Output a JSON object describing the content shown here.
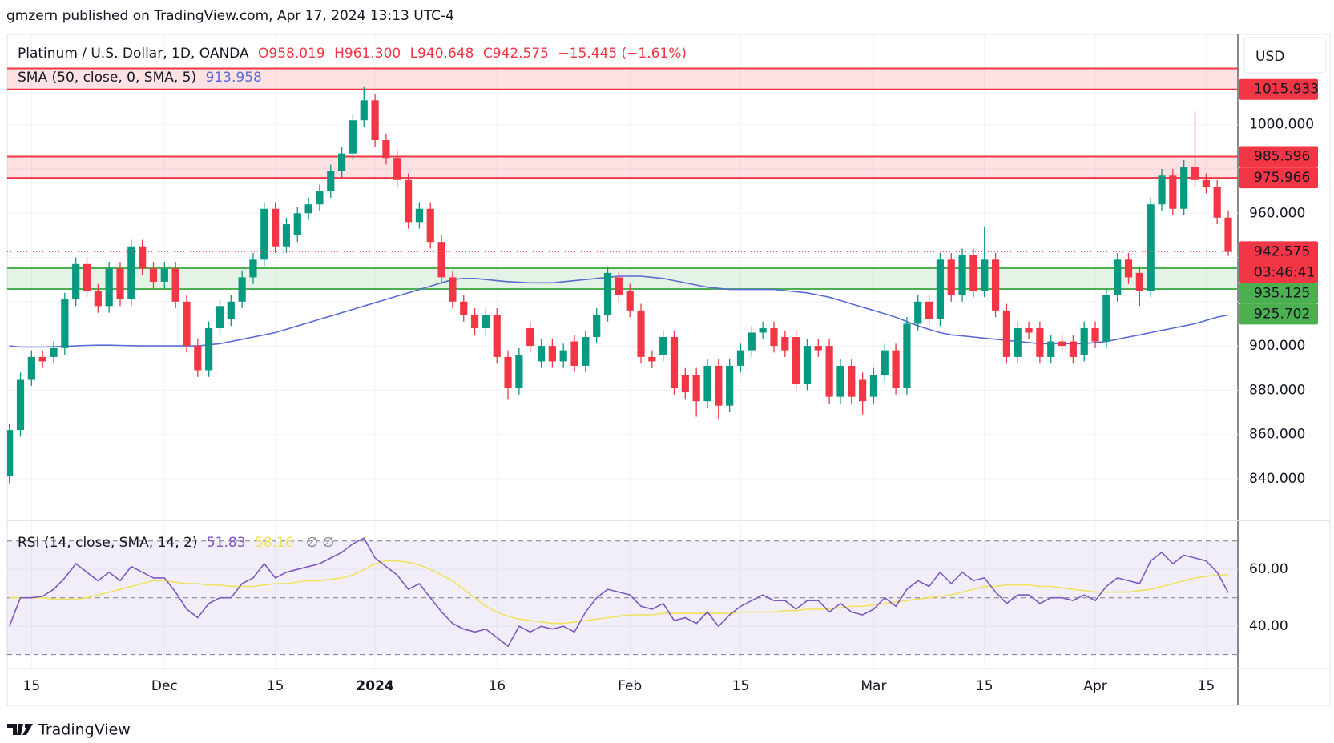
{
  "header": {
    "published": "gmzern published on TradingView.com, Apr 17, 2024 13:13 UTC-4",
    "currency": "USD",
    "footer": "TradingView"
  },
  "chart_data": [
    {
      "type": "candlestick",
      "title": "Platinum / U.S. Dollar, 1D, OANDA",
      "ohlc_legend": [
        {
          "label": "O",
          "text": "958.019"
        },
        {
          "label": "H",
          "text": "961.300"
        },
        {
          "label": "L",
          "text": "940.648"
        },
        {
          "label": "C",
          "text": "942.575"
        }
      ],
      "change": "−15.445 (−1.61%)",
      "countdown": "03:46:41",
      "colors": {
        "up": "#089981",
        "down": "#f23645"
      },
      "categories": [
        null,
        null,
        "15",
        null,
        null,
        null,
        null,
        null,
        null,
        null,
        null,
        null,
        null,
        null,
        "Dec",
        null,
        null,
        null,
        null,
        null,
        null,
        null,
        null,
        null,
        "15",
        null,
        null,
        null,
        null,
        null,
        null,
        null,
        null,
        "2024",
        null,
        null,
        null,
        null,
        null,
        null,
        null,
        null,
        null,
        null,
        "16",
        null,
        null,
        null,
        null,
        null,
        null,
        null,
        null,
        null,
        null,
        null,
        "Feb",
        null,
        null,
        null,
        null,
        null,
        null,
        null,
        null,
        null,
        "15",
        null,
        null,
        null,
        null,
        null,
        null,
        null,
        null,
        null,
        null,
        null,
        "Mar",
        null,
        null,
        null,
        null,
        null,
        null,
        null,
        null,
        null,
        "15",
        null,
        null,
        null,
        null,
        null,
        null,
        null,
        null,
        null,
        "Apr",
        null,
        null,
        null,
        null,
        null,
        null,
        null,
        null,
        null,
        "15",
        null,
        null
      ],
      "open": [
        841,
        862,
        885,
        895,
        895,
        899,
        921,
        937,
        925,
        918,
        935,
        921,
        945,
        935,
        929,
        935,
        920,
        900,
        889,
        908,
        912,
        920,
        931,
        939,
        962,
        945,
        950,
        960,
        964,
        970,
        979,
        987,
        1002,
        1011,
        993,
        985,
        975,
        956,
        962,
        947,
        931,
        920,
        914,
        908,
        914,
        895,
        881,
        908,
        893,
        900,
        893,
        902,
        891,
        904,
        914,
        931,
        925,
        916,
        895,
        896,
        904,
        887,
        887,
        875,
        891,
        873,
        891,
        898,
        906,
        908,
        904,
        904,
        883,
        900,
        900,
        877,
        891,
        885,
        877,
        887,
        898,
        881,
        910,
        920,
        912,
        939,
        923,
        941,
        925,
        939,
        916,
        895,
        908,
        908,
        895,
        902,
        902,
        896,
        908,
        902,
        923,
        939,
        933,
        925,
        964,
        977,
        962,
        981,
        975,
        972,
        958.019
      ],
      "high": [
        865,
        888,
        898,
        898,
        902,
        924,
        940,
        940,
        928,
        938,
        938,
        948,
        948,
        938,
        938,
        938,
        923,
        903,
        911,
        921,
        923,
        934,
        942,
        965,
        965,
        958,
        963,
        967,
        973,
        982,
        990,
        1005,
        1017,
        1014,
        996,
        988,
        978,
        965,
        965,
        950,
        934,
        923,
        917,
        917,
        917,
        898,
        899,
        911,
        903,
        903,
        901,
        905,
        907,
        917,
        936,
        934,
        928,
        919,
        898,
        907,
        907,
        890,
        890,
        894,
        894,
        894,
        901,
        909,
        911,
        911,
        907,
        907,
        903,
        903,
        903,
        894,
        894,
        888,
        890,
        901,
        901,
        913,
        923,
        923,
        942,
        942,
        944,
        944,
        954,
        942,
        919,
        911,
        911,
        911,
        905,
        905,
        905,
        911,
        911,
        926,
        942,
        942,
        936,
        967,
        980,
        980,
        984,
        1006,
        978,
        975,
        961.3
      ],
      "low": [
        838,
        859,
        882,
        890,
        892,
        896,
        918,
        922,
        915,
        915,
        918,
        918,
        932,
        926,
        926,
        917,
        897,
        886,
        886,
        905,
        909,
        917,
        928,
        936,
        942,
        942,
        947,
        957,
        961,
        967,
        976,
        984,
        999,
        990,
        982,
        972,
        953,
        953,
        944,
        928,
        917,
        911,
        905,
        905,
        892,
        876,
        878,
        897,
        890,
        890,
        890,
        888,
        888,
        901,
        911,
        920,
        913,
        892,
        890,
        893,
        878,
        876,
        868,
        872,
        867,
        870,
        888,
        895,
        903,
        897,
        895,
        880,
        880,
        895,
        874,
        874,
        874,
        869,
        874,
        884,
        878,
        878,
        907,
        909,
        909,
        920,
        920,
        922,
        922,
        913,
        892,
        892,
        903,
        892,
        892,
        897,
        892,
        893,
        899,
        899,
        920,
        928,
        918,
        922,
        961,
        959,
        959,
        972,
        969,
        955,
        940.648
      ],
      "close": [
        862,
        885,
        895,
        893,
        899,
        921,
        937,
        925,
        918,
        935,
        921,
        945,
        935,
        929,
        935,
        920,
        900,
        889,
        908,
        918,
        920,
        931,
        939,
        962,
        945,
        955,
        960,
        964,
        970,
        979,
        987,
        1002,
        1011,
        993,
        985,
        975,
        956,
        962,
        947,
        931,
        920,
        914,
        908,
        914,
        895,
        881,
        896,
        900,
        900,
        893,
        898,
        891,
        904,
        914,
        933,
        923,
        916,
        895,
        893,
        904,
        881,
        879,
        875,
        891,
        873,
        891,
        898,
        906,
        908,
        900,
        898,
        883,
        900,
        898,
        877,
        891,
        877,
        875,
        887,
        898,
        881,
        910,
        920,
        912,
        939,
        923,
        941,
        925,
        939,
        916,
        895,
        908,
        906,
        895,
        902,
        900,
        895,
        908,
        902,
        923,
        939,
        931,
        925,
        964,
        977,
        962,
        981,
        975,
        972,
        958,
        942.575
      ],
      "series": [
        {
          "name": "SMA (50, close, 0, SMA, 5)",
          "color": "#5b6bd6",
          "values": [
            900,
            899.5,
            899.5,
            899.5,
            899.6,
            899.8,
            900,
            900.2,
            900.3,
            900.3,
            900.2,
            900.1,
            900,
            900,
            900,
            900,
            900,
            900,
            900.5,
            901,
            902,
            903,
            904,
            905,
            906,
            907.5,
            909,
            910.5,
            912,
            913.5,
            915,
            916.5,
            918,
            919.5,
            921,
            922.5,
            924,
            925.5,
            927,
            928.5,
            930,
            930.5,
            930.5,
            930,
            929.5,
            929,
            928.8,
            928.5,
            928.5,
            928.5,
            929,
            929.5,
            930,
            930.5,
            931,
            931.5,
            931.5,
            931.5,
            931,
            930.5,
            929.5,
            928.5,
            927.5,
            926.5,
            926,
            925.5,
            925.5,
            925.5,
            925.5,
            925.5,
            925,
            924.5,
            924,
            923,
            922,
            920.5,
            919,
            917.5,
            916,
            914.5,
            913,
            911,
            909,
            907.5,
            906,
            905,
            904.5,
            904,
            903.5,
            903,
            902.5,
            902,
            901.5,
            901,
            901,
            901,
            901,
            901,
            901.5,
            902,
            903,
            904,
            905,
            906,
            907,
            908,
            909,
            910,
            911.5,
            913,
            913.958
          ]
        }
      ],
      "zones": [
        {
          "color": "#f23645",
          "top": 1025.4,
          "bottom": 1015.933,
          "tagged": [
            "bottom"
          ]
        },
        {
          "color": "#f23645",
          "top": 985.596,
          "bottom": 975.966,
          "tagged": [
            "top",
            "bottom"
          ]
        },
        {
          "color": "#4caf50",
          "top": 935.125,
          "bottom": 925.702,
          "tagged": [
            "top",
            "bottom"
          ]
        }
      ],
      "ylim": [
        821.5,
        1040.8
      ],
      "yticks": [
        {
          "value": 840,
          "label": "840.000"
        },
        {
          "value": 860,
          "label": "860.000"
        },
        {
          "value": 880,
          "label": "880.000"
        },
        {
          "value": 900,
          "label": "900.000"
        },
        {
          "value": 920,
          "label": ""
        },
        {
          "value": 940,
          "label": ""
        },
        {
          "value": 960,
          "label": "960.000"
        },
        {
          "value": 980,
          "label": ""
        },
        {
          "value": 1000,
          "label": "1000.000"
        }
      ]
    },
    {
      "type": "line",
      "levels": [
        30,
        50,
        70
      ],
      "band_color": "#7e57c2",
      "extra": "∅ ∅",
      "series": [
        {
          "name": "RSI (14, close, SMA, 14, 2)",
          "color": "#7e57c2",
          "values": [
            40,
            50,
            50,
            50.5,
            53,
            57,
            62,
            59,
            56,
            59,
            56,
            61,
            59,
            57,
            57,
            52,
            46,
            43,
            48,
            50,
            50,
            55,
            57,
            62,
            57,
            59,
            60,
            61,
            62,
            64,
            66,
            69,
            71,
            64,
            61,
            58,
            53,
            55,
            50,
            45,
            41,
            39,
            38,
            39,
            36,
            33,
            40,
            38,
            40,
            39,
            40,
            38,
            45,
            50,
            53,
            52,
            51,
            47,
            46,
            48,
            42,
            43,
            41,
            45,
            40,
            44,
            47,
            49,
            51,
            49,
            49,
            46,
            49,
            49,
            45,
            48,
            45,
            44,
            46,
            50,
            47,
            53,
            56,
            54,
            59,
            55,
            59,
            56,
            57,
            52,
            48,
            51,
            51,
            48,
            50,
            50,
            49,
            51,
            49,
            54,
            57,
            56,
            55,
            63,
            66,
            62,
            65,
            64,
            63,
            59,
            51.83
          ]
        },
        {
          "color": "#f0e25e",
          "values": [
            50,
            50,
            50,
            50,
            49.5,
            49.5,
            49.5,
            50,
            51,
            52,
            53,
            54,
            55,
            56,
            56,
            55.5,
            55,
            55,
            54.5,
            54.5,
            54,
            54,
            54,
            54.5,
            55,
            55,
            55.5,
            56,
            56,
            56.5,
            57,
            58,
            60,
            62,
            63,
            63,
            62.5,
            61.5,
            60,
            58,
            56,
            53,
            50,
            47,
            45,
            43.5,
            42.5,
            42,
            41.5,
            41,
            41,
            41.5,
            42,
            42.5,
            43,
            43.5,
            44,
            44,
            44,
            44.5,
            44.5,
            44.5,
            44.5,
            44.5,
            44.5,
            44.5,
            45,
            45,
            45,
            45,
            45.5,
            45.5,
            46,
            46,
            46,
            46.5,
            47,
            47,
            47.5,
            48,
            48.5,
            49,
            49.5,
            50,
            50.5,
            51,
            52,
            53,
            54,
            54,
            54.5,
            54.5,
            54.5,
            54,
            54,
            53.5,
            53,
            52.5,
            52,
            52,
            52,
            52,
            52.5,
            53,
            54,
            55,
            56,
            57,
            57.5,
            58,
            58.16
          ]
        }
      ],
      "ylim": [
        25.1,
        76.7
      ],
      "yticks": [
        {
          "value": 40,
          "label": "40.00"
        },
        {
          "value": 60,
          "label": "60.00"
        }
      ]
    }
  ]
}
